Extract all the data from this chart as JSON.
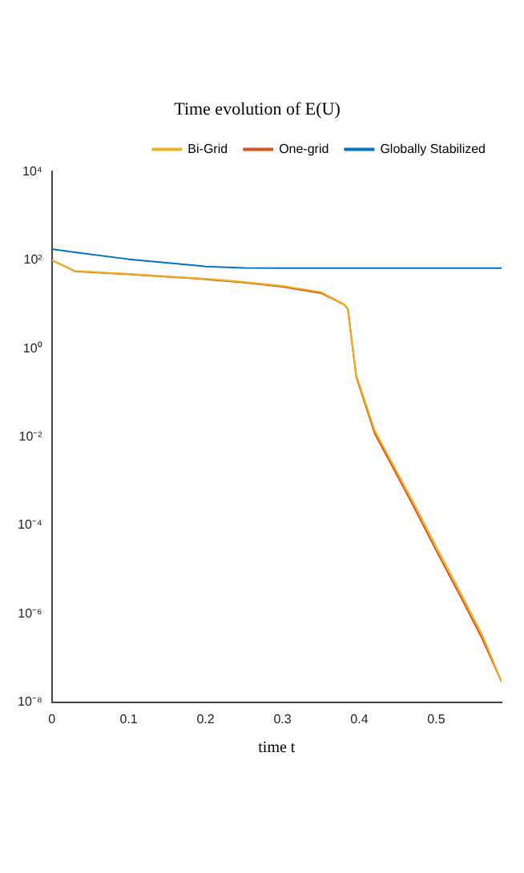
{
  "chart_data": {
    "type": "line",
    "title": "Time evolution of E(U)",
    "xlabel": "time t",
    "x": [
      0,
      0.03,
      0.1,
      0.2,
      0.25,
      0.3,
      0.35,
      0.38,
      0.385,
      0.396,
      0.42,
      0.439,
      0.47,
      0.5,
      0.53,
      0.56,
      0.585
    ],
    "series": [
      {
        "name": "Globally Stabilized",
        "color": "#0072bd",
        "values": [
          178,
          150,
          105,
          72,
          67,
          66,
          66,
          66,
          66,
          66,
          66,
          66,
          66,
          66,
          66,
          66,
          66
        ]
      },
      {
        "name": "One-grid",
        "color": "#d95319",
        "values": [
          100,
          56,
          48,
          37,
          31,
          25,
          18,
          10,
          7.8,
          0.23,
          0.012,
          0.0029,
          0.00028,
          2.7e-05,
          2.8e-06,
          2.7e-07,
          2.9e-08
        ]
      },
      {
        "name": "Bi-Grid",
        "color": "#edb120",
        "values": [
          100,
          57,
          49,
          38,
          32,
          26,
          19,
          10,
          7.8,
          0.25,
          0.014,
          0.0034,
          0.00034,
          3.3e-05,
          3.4e-06,
          3.3e-07,
          2.9e-08
        ]
      }
    ],
    "xlim": [
      0,
      0.585
    ],
    "xticks": [
      0,
      0.1,
      0.2,
      0.3,
      0.4,
      0.5
    ],
    "ylim": [
      1e-08,
      10000
    ],
    "yticks": [
      {
        "value": 1e-08,
        "label": "10⁻⁸"
      },
      {
        "value": 1e-06,
        "label": "10⁻⁶"
      },
      {
        "value": 0.0001,
        "label": "10⁻⁴"
      },
      {
        "value": 0.01,
        "label": "10⁻²"
      },
      {
        "value": 1,
        "label": "10⁰"
      },
      {
        "value": 100,
        "label": "10²"
      },
      {
        "value": 10000,
        "label": "10⁴"
      }
    ],
    "log": "y",
    "grid": false,
    "legend": "top right",
    "marker": "none",
    "line_style": "solid"
  }
}
